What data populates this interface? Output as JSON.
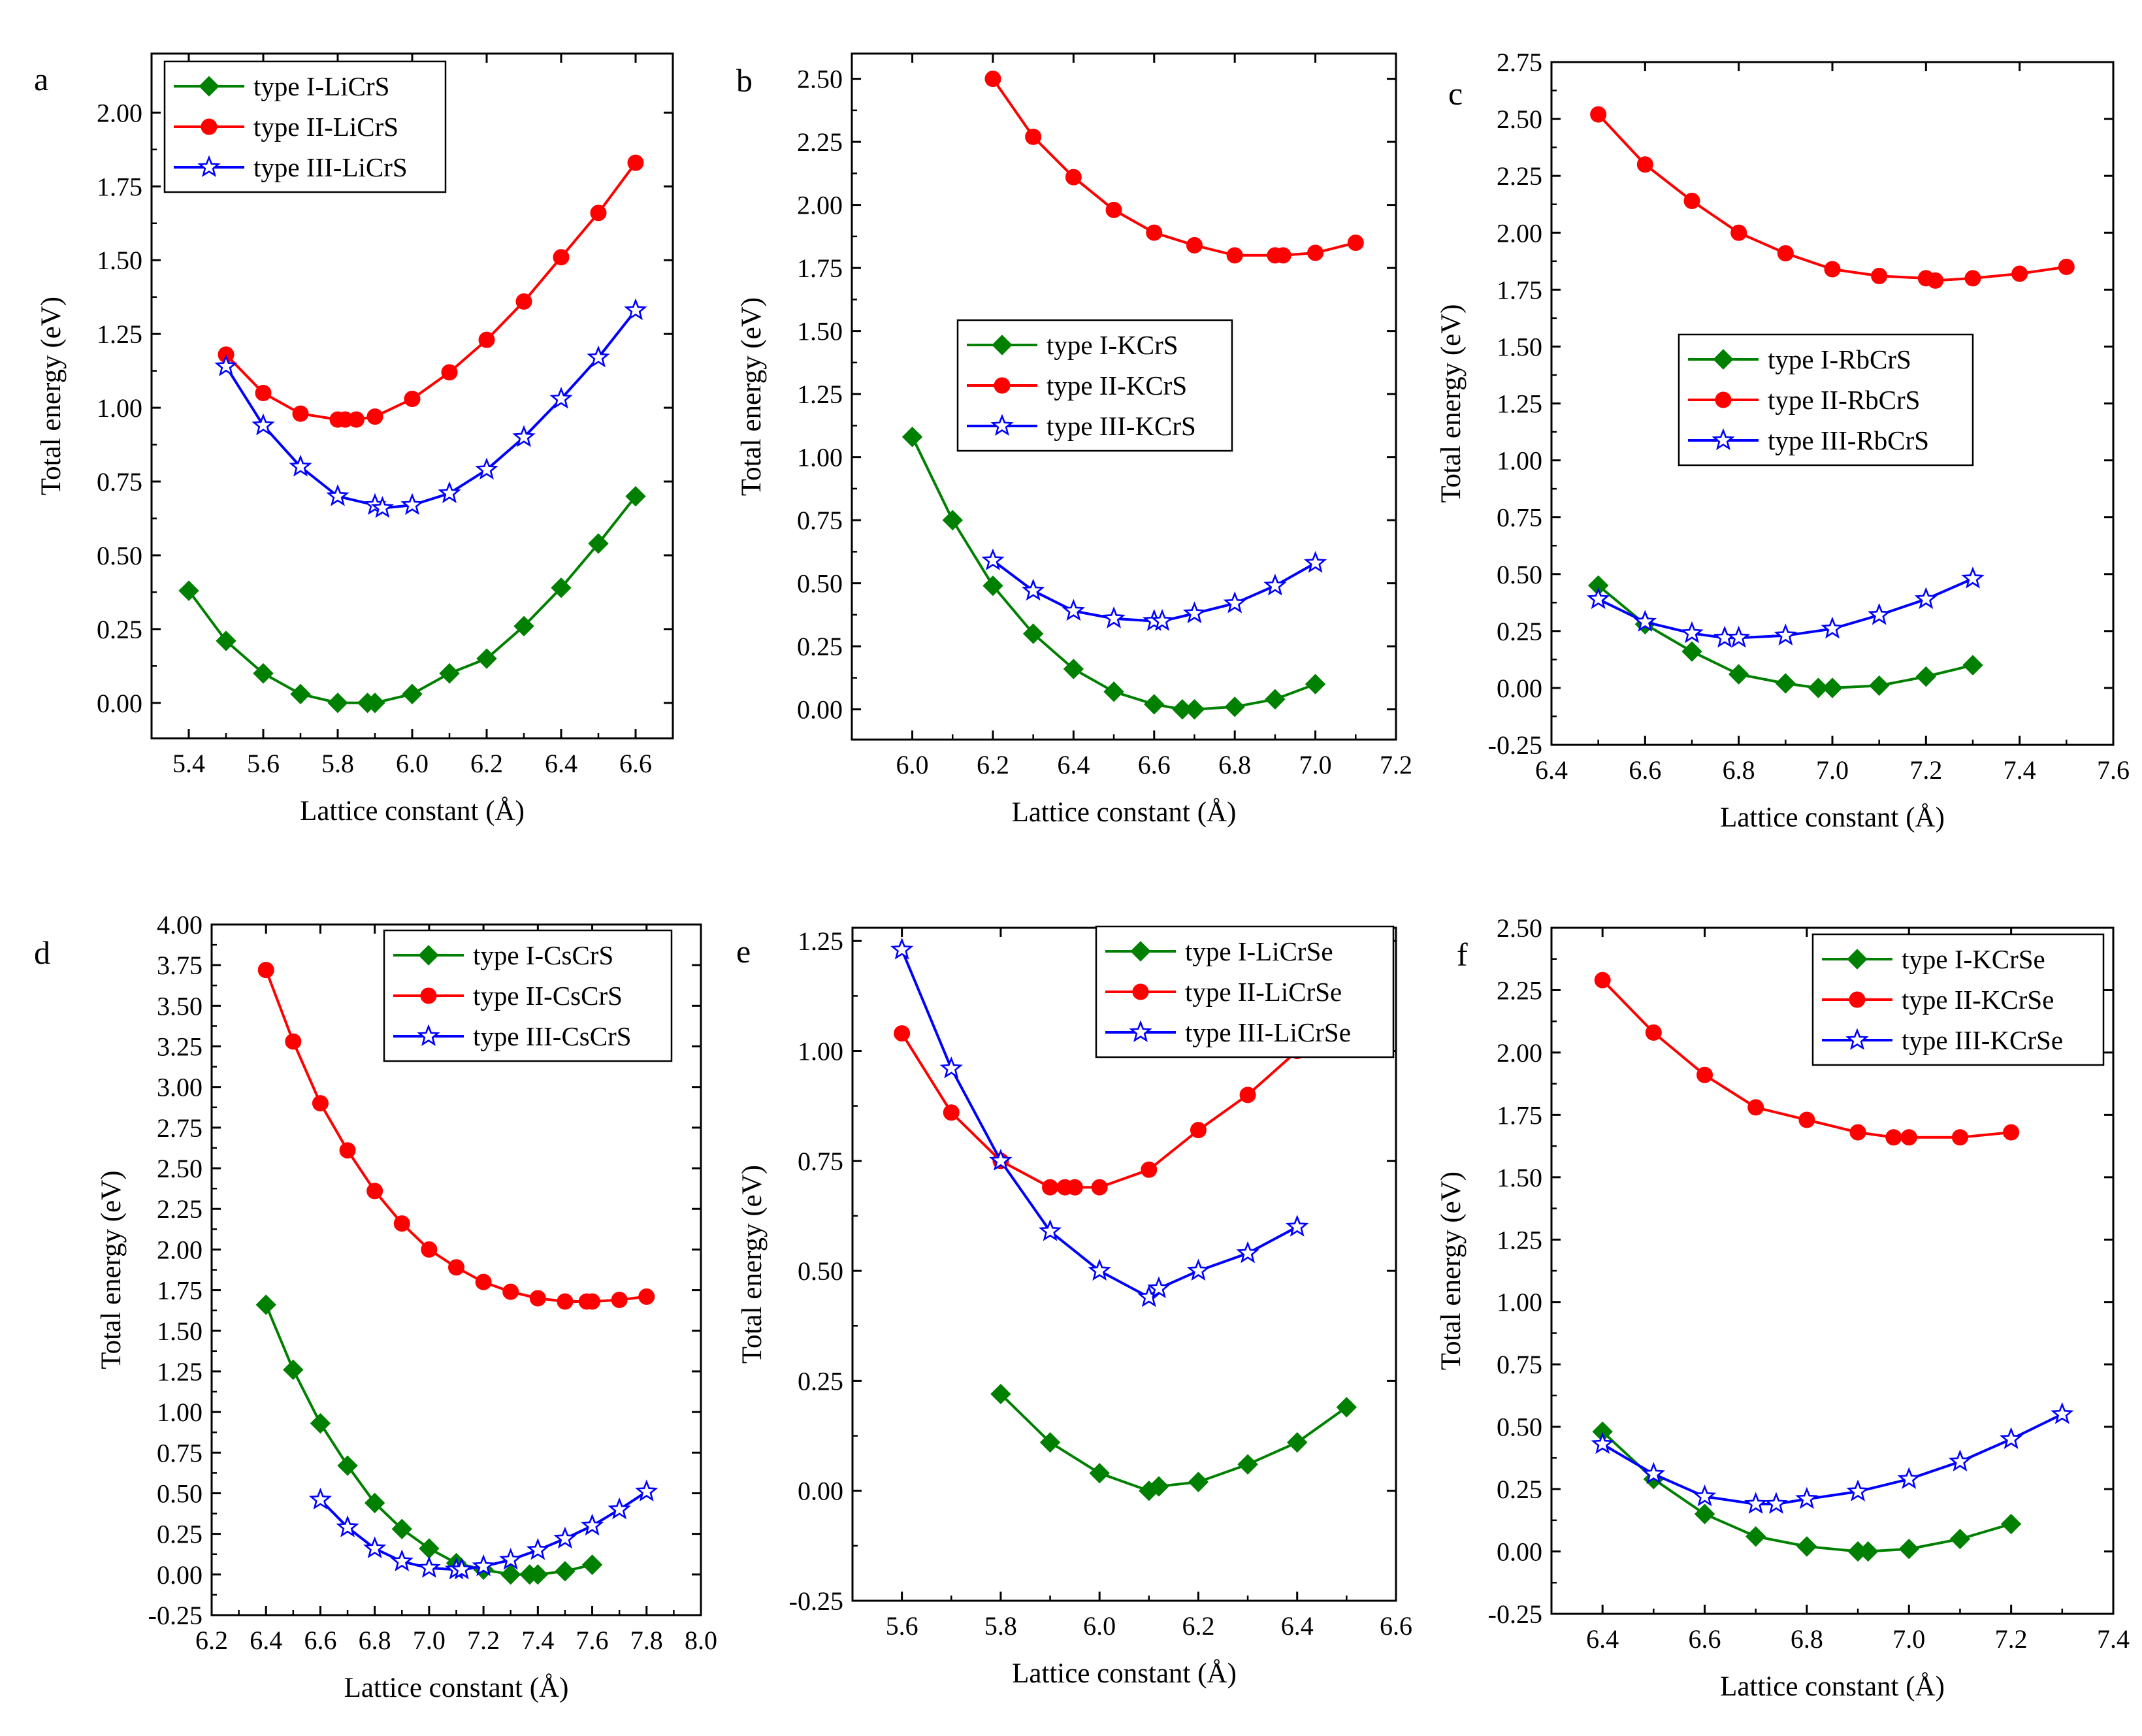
{
  "figure": {
    "background": "#ffffff"
  },
  "colors": {
    "type_I": "#008000",
    "type_II": "#ff0000",
    "type_III": "#0000ff"
  },
  "chart_data": [
    {
      "panel_label": "a",
      "type": "line",
      "xlabel": "Lattice constant (Å)",
      "ylabel": "Total energy (eV)",
      "xlim": [
        5.3,
        6.7
      ],
      "ylim": [
        -0.12,
        2.2
      ],
      "xticks": [
        5.4,
        5.6,
        5.8,
        6.0,
        6.2,
        6.4,
        6.6
      ],
      "xtick_labels": [
        "5.4",
        "5.6",
        "5.8",
        "6.0",
        "6.2",
        "6.4",
        "6.6"
      ],
      "yticks": [
        0,
        0.25,
        0.5,
        0.75,
        1.0,
        1.25,
        1.5,
        1.75,
        2.0
      ],
      "ytick_labels": [
        "0.00",
        "0.25",
        "0.50",
        "0.75",
        "1.00",
        "1.25",
        "1.50",
        "1.75",
        "2.00"
      ],
      "legend_position": "top-left",
      "series": [
        {
          "name": "type I-LiCrS",
          "marker": "diamond",
          "color": "#008000",
          "x": [
            5.4,
            5.5,
            5.6,
            5.7,
            5.8,
            5.88,
            5.9,
            6.0,
            6.1,
            6.2,
            6.3,
            6.4,
            6.5,
            6.6
          ],
          "y": [
            0.38,
            0.21,
            0.1,
            0.03,
            0.0,
            0.0,
            0.0,
            0.03,
            0.1,
            0.15,
            0.26,
            0.39,
            0.54,
            0.7
          ]
        },
        {
          "name": "type II-LiCrS",
          "marker": "circle",
          "color": "#ff0000",
          "x": [
            5.5,
            5.6,
            5.7,
            5.8,
            5.82,
            5.85,
            5.9,
            6.0,
            6.1,
            6.2,
            6.3,
            6.4,
            6.5,
            6.6
          ],
          "y": [
            1.18,
            1.05,
            0.98,
            0.96,
            0.96,
            0.96,
            0.97,
            1.03,
            1.12,
            1.23,
            1.36,
            1.51,
            1.66,
            1.83
          ]
        },
        {
          "name": "type III-LiCrS",
          "marker": "star",
          "color": "#0000ff",
          "x": [
            5.5,
            5.6,
            5.7,
            5.8,
            5.9,
            5.92,
            6.0,
            6.1,
            6.2,
            6.3,
            6.4,
            6.5,
            6.6
          ],
          "y": [
            1.14,
            0.94,
            0.8,
            0.7,
            0.67,
            0.66,
            0.67,
            0.71,
            0.79,
            0.9,
            1.03,
            1.17,
            1.33
          ]
        }
      ]
    },
    {
      "panel_label": "b",
      "type": "line",
      "xlabel": "Lattice constant (Å)",
      "ylabel": "Total energy (eV)",
      "xlim": [
        5.85,
        7.2
      ],
      "ylim": [
        -0.12,
        2.6
      ],
      "xticks": [
        6.0,
        6.2,
        6.4,
        6.6,
        6.8,
        7.0,
        7.2
      ],
      "xtick_labels": [
        "6.0",
        "6.2",
        "6.4",
        "6.6",
        "6.8",
        "7.0",
        "7.2"
      ],
      "yticks": [
        0,
        0.25,
        0.5,
        0.75,
        1.0,
        1.25,
        1.5,
        1.75,
        2.0,
        2.25,
        2.5
      ],
      "ytick_labels": [
        "0.00",
        "0.25",
        "0.50",
        "0.75",
        "1.00",
        "1.25",
        "1.50",
        "1.75",
        "2.00",
        "2.25",
        "2.50"
      ],
      "legend_position": "center-left",
      "series": [
        {
          "name": "type I-KCrS",
          "marker": "diamond",
          "color": "#008000",
          "x": [
            6.0,
            6.1,
            6.2,
            6.3,
            6.4,
            6.5,
            6.6,
            6.67,
            6.7,
            6.8,
            6.9,
            7.0
          ],
          "y": [
            1.08,
            0.75,
            0.49,
            0.3,
            0.16,
            0.07,
            0.02,
            0.0,
            0.0,
            0.01,
            0.04,
            0.1
          ]
        },
        {
          "name": "type II-KCrS",
          "marker": "circle",
          "color": "#ff0000",
          "x": [
            6.2,
            6.3,
            6.4,
            6.5,
            6.6,
            6.7,
            6.8,
            6.9,
            6.92,
            7.0,
            7.1
          ],
          "y": [
            2.5,
            2.27,
            2.11,
            1.98,
            1.89,
            1.84,
            1.8,
            1.8,
            1.8,
            1.81,
            1.85
          ]
        },
        {
          "name": "type III-KCrS",
          "marker": "star",
          "color": "#0000ff",
          "x": [
            6.2,
            6.3,
            6.4,
            6.5,
            6.6,
            6.62,
            6.7,
            6.8,
            6.9,
            7.0
          ],
          "y": [
            0.59,
            0.47,
            0.39,
            0.36,
            0.35,
            0.35,
            0.38,
            0.42,
            0.49,
            0.58
          ]
        }
      ]
    },
    {
      "panel_label": "c",
      "type": "line",
      "xlabel": "Lattice constant (Å)",
      "ylabel": "Total energy (eV)",
      "xlim": [
        6.4,
        7.6
      ],
      "ylim": [
        -0.25,
        2.75
      ],
      "xticks": [
        6.4,
        6.6,
        6.8,
        7.0,
        7.2,
        7.4,
        7.6
      ],
      "xtick_labels": [
        "6.4",
        "6.6",
        "6.8",
        "7.0",
        "7.2",
        "7.4",
        "7.6"
      ],
      "yticks": [
        -0.25,
        0,
        0.25,
        0.5,
        0.75,
        1.0,
        1.25,
        1.5,
        1.75,
        2.0,
        2.25,
        2.5,
        2.75
      ],
      "ytick_labels": [
        "-0.25",
        "0.00",
        "0.25",
        "0.50",
        "0.75",
        "1.00",
        "1.25",
        "1.50",
        "1.75",
        "2.00",
        "2.25",
        "2.50",
        "2.75"
      ],
      "legend_position": "center",
      "series": [
        {
          "name": "type I-RbCrS",
          "marker": "diamond",
          "color": "#008000",
          "x": [
            6.5,
            6.6,
            6.7,
            6.8,
            6.9,
            6.97,
            7.0,
            7.1,
            7.2,
            7.3
          ],
          "y": [
            0.45,
            0.28,
            0.16,
            0.06,
            0.02,
            0.0,
            0.0,
            0.01,
            0.05,
            0.1
          ]
        },
        {
          "name": "type II-RbCrS",
          "marker": "circle",
          "color": "#ff0000",
          "x": [
            6.5,
            6.6,
            6.7,
            6.8,
            6.9,
            7.0,
            7.1,
            7.2,
            7.22,
            7.3,
            7.4,
            7.5
          ],
          "y": [
            2.52,
            2.3,
            2.14,
            2.0,
            1.91,
            1.84,
            1.81,
            1.8,
            1.79,
            1.8,
            1.82,
            1.85
          ]
        },
        {
          "name": "type III-RbCrS",
          "marker": "star",
          "color": "#0000ff",
          "x": [
            6.5,
            6.6,
            6.7,
            6.77,
            6.8,
            6.9,
            7.0,
            7.1,
            7.2,
            7.3
          ],
          "y": [
            0.39,
            0.29,
            0.24,
            0.22,
            0.22,
            0.23,
            0.26,
            0.32,
            0.39,
            0.48
          ]
        }
      ]
    },
    {
      "panel_label": "d",
      "type": "line",
      "xlabel": "Lattice constant (Å)",
      "ylabel": "Total energy (eV)",
      "xlim": [
        6.2,
        8.0
      ],
      "ylim": [
        -0.25,
        4.0
      ],
      "xticks": [
        6.2,
        6.4,
        6.6,
        6.8,
        7.0,
        7.2,
        7.4,
        7.6,
        7.8,
        8.0
      ],
      "xtick_labels": [
        "6.2",
        "6.4",
        "6.6",
        "6.8",
        "7.0",
        "7.2",
        "7.4",
        "7.6",
        "7.8",
        "8.0"
      ],
      "yticks": [
        -0.25,
        0,
        0.25,
        0.5,
        0.75,
        1.0,
        1.25,
        1.5,
        1.75,
        2.0,
        2.25,
        2.5,
        2.75,
        3.0,
        3.25,
        3.5,
        3.75,
        4.0
      ],
      "ytick_labels": [
        "-0.25",
        "0.00",
        "0.25",
        "0.50",
        "0.75",
        "1.00",
        "1.25",
        "1.50",
        "1.75",
        "2.00",
        "2.25",
        "2.50",
        "2.75",
        "3.00",
        "3.25",
        "3.50",
        "3.75",
        "4.00"
      ],
      "legend_position": "top-right",
      "series": [
        {
          "name": "type I-CsCrS",
          "marker": "diamond",
          "color": "#008000",
          "x": [
            6.4,
            6.5,
            6.6,
            6.7,
            6.8,
            6.9,
            7.0,
            7.1,
            7.2,
            7.3,
            7.37,
            7.4,
            7.5,
            7.6
          ],
          "y": [
            1.66,
            1.26,
            0.93,
            0.67,
            0.44,
            0.28,
            0.16,
            0.07,
            0.03,
            0.0,
            0.0,
            0.0,
            0.02,
            0.06
          ]
        },
        {
          "name": "type II-CsCrS",
          "marker": "circle",
          "color": "#ff0000",
          "x": [
            6.4,
            6.5,
            6.6,
            6.7,
            6.8,
            6.9,
            7.0,
            7.1,
            7.2,
            7.3,
            7.4,
            7.5,
            7.58,
            7.6,
            7.7,
            7.8
          ],
          "y": [
            3.72,
            3.28,
            2.9,
            2.61,
            2.36,
            2.16,
            2.0,
            1.89,
            1.8,
            1.74,
            1.7,
            1.68,
            1.68,
            1.68,
            1.69,
            1.71
          ]
        },
        {
          "name": "type III-CsCrS",
          "marker": "star",
          "color": "#0000ff",
          "x": [
            6.6,
            6.7,
            6.8,
            6.9,
            7.0,
            7.1,
            7.12,
            7.2,
            7.3,
            7.4,
            7.5,
            7.6,
            7.7,
            7.8
          ],
          "y": [
            0.46,
            0.29,
            0.16,
            0.08,
            0.04,
            0.03,
            0.03,
            0.05,
            0.09,
            0.15,
            0.22,
            0.3,
            0.4,
            0.51
          ]
        }
      ]
    },
    {
      "panel_label": "e",
      "type": "line",
      "xlabel": "Lattice constant (Å)",
      "ylabel": "Total energy (eV)",
      "xlim": [
        5.5,
        6.6
      ],
      "ylim": [
        -0.25,
        1.28
      ],
      "xticks": [
        5.6,
        5.8,
        6.0,
        6.2,
        6.4,
        6.6
      ],
      "xtick_labels": [
        "5.6",
        "5.8",
        "6.0",
        "6.2",
        "6.4",
        "6.6"
      ],
      "yticks": [
        -0.25,
        0,
        0.25,
        0.5,
        0.75,
        1.0,
        1.25
      ],
      "ytick_labels": [
        "-0.25",
        "0.00",
        "0.25",
        "0.50",
        "0.75",
        "1.00",
        "1.25"
      ],
      "legend_position": "top-right",
      "series": [
        {
          "name": "type I-LiCrSe",
          "marker": "diamond",
          "color": "#008000",
          "x": [
            5.8,
            5.9,
            6.0,
            6.1,
            6.12,
            6.2,
            6.3,
            6.4,
            6.5
          ],
          "y": [
            0.22,
            0.11,
            0.04,
            0.0,
            0.01,
            0.02,
            0.06,
            0.11,
            0.19
          ]
        },
        {
          "name": "type II-LiCrSe",
          "marker": "circle",
          "color": "#ff0000",
          "x": [
            5.6,
            5.7,
            5.8,
            5.9,
            5.93,
            5.95,
            6.0,
            6.1,
            6.2,
            6.3,
            6.4
          ],
          "y": [
            1.04,
            0.86,
            0.75,
            0.69,
            0.69,
            0.69,
            0.69,
            0.73,
            0.82,
            0.9,
            1.0
          ]
        },
        {
          "name": "type III-LiCrSe",
          "marker": "star",
          "color": "#0000ff",
          "x": [
            5.6,
            5.7,
            5.8,
            5.9,
            6.0,
            6.1,
            6.12,
            6.2,
            6.3,
            6.4
          ],
          "y": [
            1.23,
            0.96,
            0.75,
            0.59,
            0.5,
            0.44,
            0.46,
            0.5,
            0.54,
            0.6
          ]
        }
      ]
    },
    {
      "panel_label": "f",
      "type": "line",
      "xlabel": "Lattice constant (Å)",
      "ylabel": "Total energy (eV)",
      "xlim": [
        6.3,
        7.4
      ],
      "ylim": [
        -0.25,
        2.5
      ],
      "xticks": [
        6.4,
        6.6,
        6.8,
        7.0,
        7.2,
        7.4
      ],
      "xtick_labels": [
        "6.4",
        "6.6",
        "6.8",
        "7.0",
        "7.2",
        "7.4"
      ],
      "yticks": [
        -0.25,
        0,
        0.25,
        0.5,
        0.75,
        1.0,
        1.25,
        1.5,
        1.75,
        2.0,
        2.25,
        2.5
      ],
      "ytick_labels": [
        "-0.25",
        "0.00",
        "0.25",
        "0.50",
        "0.75",
        "1.00",
        "1.25",
        "1.50",
        "1.75",
        "2.00",
        "2.25",
        "2.50"
      ],
      "legend_position": "top-right",
      "series": [
        {
          "name": "type I-KCrSe",
          "marker": "diamond",
          "color": "#008000",
          "x": [
            6.4,
            6.5,
            6.6,
            6.7,
            6.8,
            6.9,
            6.92,
            7.0,
            7.1,
            7.2
          ],
          "y": [
            0.48,
            0.29,
            0.15,
            0.06,
            0.02,
            0.0,
            0.0,
            0.01,
            0.05,
            0.11
          ]
        },
        {
          "name": "type II-KCrSe",
          "marker": "circle",
          "color": "#ff0000",
          "x": [
            6.4,
            6.5,
            6.6,
            6.7,
            6.8,
            6.9,
            6.97,
            7.0,
            7.1,
            7.2
          ],
          "y": [
            2.29,
            2.08,
            1.91,
            1.78,
            1.73,
            1.68,
            1.66,
            1.66,
            1.66,
            1.68
          ]
        },
        {
          "name": "type III-KCrSe",
          "marker": "star",
          "color": "#0000ff",
          "x": [
            6.4,
            6.5,
            6.6,
            6.7,
            6.74,
            6.8,
            6.9,
            7.0,
            7.1,
            7.2,
            7.3
          ],
          "y": [
            0.43,
            0.31,
            0.22,
            0.19,
            0.19,
            0.21,
            0.24,
            0.29,
            0.36,
            0.45,
            0.55
          ]
        }
      ]
    }
  ]
}
